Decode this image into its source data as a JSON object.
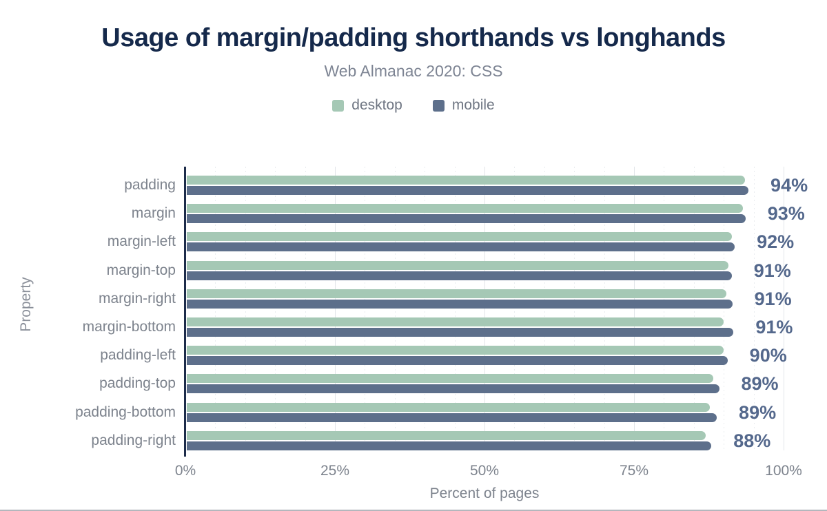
{
  "header": {
    "title": "Usage of margin/padding shorthands vs longhands",
    "subtitle": "Web Almanac 2020: CSS"
  },
  "legend": [
    {
      "label": "desktop",
      "color": "#a5c8b5"
    },
    {
      "label": "mobile",
      "color": "#5d6f8b"
    }
  ],
  "chart_data": {
    "type": "bar",
    "orientation": "horizontal",
    "title": "Usage of margin/padding shorthands vs longhands",
    "subtitle": "Web Almanac 2020: CSS",
    "categories": [
      "padding",
      "margin",
      "margin-left",
      "margin-top",
      "margin-right",
      "margin-bottom",
      "padding-left",
      "padding-top",
      "padding-bottom",
      "padding-right"
    ],
    "series": [
      {
        "name": "desktop",
        "color": "#a5c8b5",
        "values": [
          93.3,
          93.0,
          91.1,
          90.5,
          90.2,
          89.8,
          89.7,
          88.0,
          87.4,
          86.7
        ]
      },
      {
        "name": "mobile",
        "color": "#5d6f8b",
        "values": [
          93.9,
          93.4,
          91.6,
          91.1,
          91.2,
          91.4,
          90.4,
          89.0,
          88.6,
          87.7
        ]
      }
    ],
    "bar_labels": [
      "94%",
      "93%",
      "92%",
      "91%",
      "91%",
      "91%",
      "90%",
      "89%",
      "89%",
      "88%"
    ],
    "xlabel": "Percent of pages",
    "ylabel": "Property",
    "xlim": [
      0,
      100
    ],
    "x_ticks": [
      0,
      25,
      50,
      75,
      100
    ],
    "x_tick_labels": [
      "0%",
      "25%",
      "50%",
      "75%",
      "100%"
    ],
    "minor_grid_step": 5,
    "grid": true,
    "legend_position": "top"
  },
  "colors": {
    "title": "#15294b",
    "axis_line": "#1d2c4a",
    "text_gray": "#7d838d",
    "value_label": "#54688c",
    "grid_major": "#e2e5e9",
    "grid_minor": "#e9ecef",
    "desktop": "#a5c8b5",
    "mobile": "#5d6f8b"
  }
}
